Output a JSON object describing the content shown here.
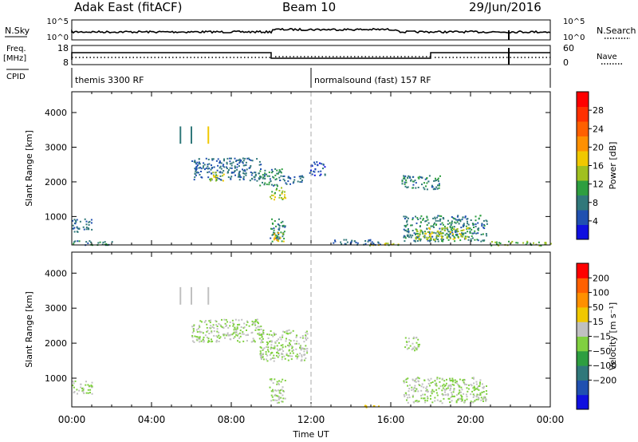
{
  "header": {
    "station": "Adak East (fitACF)",
    "beam": "Beam 10",
    "date": "29/Jun/2016"
  },
  "strip_labels": {
    "nsky": "N.Sky",
    "nsky_ticks": [
      "10^5",
      "10^0"
    ],
    "nsearch": "N.Search",
    "nsearch_ticks": [
      "10^5",
      "10^0"
    ],
    "freq": "Freq.",
    "freq_unit": "[MHz]",
    "freq_ticks": [
      "18",
      "8"
    ],
    "nave": "Nave",
    "nave_ticks": [
      "60",
      "0"
    ],
    "cpid": "CPID"
  },
  "modes": [
    {
      "label": "themis 3300 RF",
      "start_ut": 0
    },
    {
      "label": "normalsound (fast) 157 RF",
      "start_ut": 12
    }
  ],
  "chart_data": [
    {
      "type": "heatmap",
      "title": "",
      "xlabel": "Time UT",
      "ylabel": "Slant Range [km]",
      "xlim": [
        0,
        24
      ],
      "ylim": [
        180,
        4600
      ],
      "x_ticks": [
        "00:00",
        "04:00",
        "08:00",
        "12:00",
        "16:00",
        "20:00",
        "00:00"
      ],
      "y_ticks": [
        "1000",
        "2000",
        "3000",
        "4000"
      ],
      "colorbar": {
        "label": "Power [dB]",
        "ticks": [
          "4",
          "8",
          "12",
          "16",
          "20",
          "24",
          "28"
        ],
        "range": [
          0,
          30
        ],
        "colors": [
          "#1010e0",
          "#2050b0",
          "#30787a",
          "#2e9e40",
          "#a0c020",
          "#f0c800",
          "#ff9000",
          "#ff6000",
          "#ff3000",
          "#ff0000"
        ]
      },
      "regions": [
        {
          "t0": 0.0,
          "t1": 1.0,
          "r0": 550,
          "r1": 950,
          "value": 6
        },
        {
          "t0": 0.0,
          "t1": 2.0,
          "r0": 180,
          "r1": 320,
          "value": 8
        },
        {
          "t0": 6.0,
          "t1": 9.5,
          "r0": 2050,
          "r1": 2700,
          "value": 6
        },
        {
          "t0": 6.8,
          "t1": 7.6,
          "r0": 2050,
          "r1": 2300,
          "value": 14
        },
        {
          "t0": 9.4,
          "t1": 10.6,
          "r0": 1900,
          "r1": 2400,
          "value": 8
        },
        {
          "t0": 9.9,
          "t1": 10.7,
          "r0": 1500,
          "r1": 1850,
          "value": 14
        },
        {
          "t0": 10.6,
          "t1": 11.8,
          "r0": 1950,
          "r1": 2200,
          "value": 6
        },
        {
          "t0": 11.9,
          "t1": 12.7,
          "r0": 2200,
          "r1": 2600,
          "value": 4
        },
        {
          "t0": 9.9,
          "t1": 10.7,
          "r0": 300,
          "r1": 1000,
          "value": 8
        },
        {
          "t0": 10.1,
          "t1": 10.6,
          "r0": 300,
          "r1": 550,
          "value": 16
        },
        {
          "t0": 13.0,
          "t1": 15.5,
          "r0": 200,
          "r1": 350,
          "value": 6
        },
        {
          "t0": 14.5,
          "t1": 16.5,
          "r0": 180,
          "r1": 250,
          "value": 14
        },
        {
          "t0": 16.5,
          "t1": 18.5,
          "r0": 1800,
          "r1": 2200,
          "value": 8
        },
        {
          "t0": 16.6,
          "t1": 20.8,
          "r0": 300,
          "r1": 1050,
          "value": 8
        },
        {
          "t0": 17.2,
          "t1": 20.0,
          "r0": 350,
          "r1": 700,
          "value": 14
        },
        {
          "t0": 21.0,
          "t1": 24.0,
          "r0": 180,
          "r1": 300,
          "value": 12
        }
      ],
      "vertical_marks": [
        {
          "t": 5.45,
          "r0": 3100,
          "r1": 3600,
          "value": 8
        },
        {
          "t": 6.0,
          "r0": 3100,
          "r1": 3600,
          "value": 6
        },
        {
          "t": 6.85,
          "r0": 3100,
          "r1": 3600,
          "value": 16
        }
      ]
    },
    {
      "type": "heatmap",
      "title": "",
      "xlabel": "Time UT",
      "ylabel": "Slant Range [km]",
      "xlim": [
        0,
        24
      ],
      "ylim": [
        180,
        4600
      ],
      "x_ticks": [
        "00:00",
        "04:00",
        "08:00",
        "12:00",
        "16:00",
        "20:00",
        "00:00"
      ],
      "y_ticks": [
        "1000",
        "2000",
        "3000",
        "4000"
      ],
      "colorbar": {
        "label": "Velocity [m s⁻¹]",
        "ticks": [
          "200",
          "100",
          "50",
          "15",
          "−15",
          "−50",
          "−100",
          "−200"
        ],
        "range": [
          -250,
          250
        ],
        "colors": [
          "#1010e0",
          "#2050b0",
          "#30787a",
          "#2e9e40",
          "#80d040",
          "#c0c0c0",
          "#f0c800",
          "#ff9000",
          "#ff6000",
          "#ff0000"
        ]
      },
      "regions": [
        {
          "t0": 0.0,
          "t1": 1.0,
          "r0": 550,
          "r1": 950,
          "value": 0
        },
        {
          "t0": 6.0,
          "t1": 9.5,
          "r0": 2050,
          "r1": 2700,
          "value": 0
        },
        {
          "t0": 9.4,
          "t1": 11.8,
          "r0": 1500,
          "r1": 2400,
          "value": 0
        },
        {
          "t0": 9.9,
          "t1": 10.7,
          "r0": 300,
          "r1": 1000,
          "value": 0
        },
        {
          "t0": 14.6,
          "t1": 15.5,
          "r0": 180,
          "r1": 260,
          "value": 70
        },
        {
          "t0": 16.6,
          "t1": 20.8,
          "r0": 300,
          "r1": 1050,
          "value": 0
        },
        {
          "t0": 16.6,
          "t1": 17.4,
          "r0": 1800,
          "r1": 2200,
          "value": 0
        }
      ],
      "vertical_marks": [
        {
          "t": 5.45,
          "r0": 3100,
          "r1": 3600,
          "value": 0
        },
        {
          "t": 6.0,
          "r0": 3100,
          "r1": 3600,
          "value": 0
        },
        {
          "t": 6.85,
          "r0": 3100,
          "r1": 3600,
          "value": 0
        }
      ]
    }
  ]
}
